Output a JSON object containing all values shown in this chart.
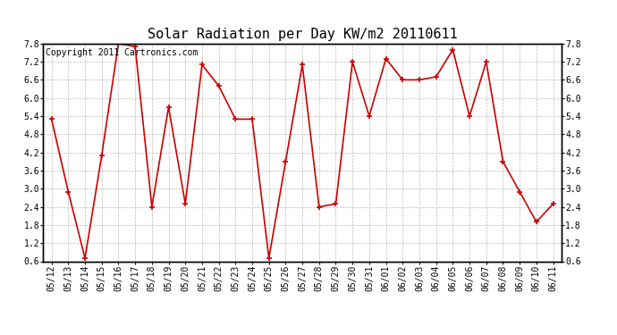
{
  "title": "Solar Radiation per Day KW/m2 20110611",
  "copyright": "Copyright 2011 Cartronics.com",
  "labels": [
    "05/12",
    "05/13",
    "05/14",
    "05/15",
    "05/16",
    "05/17",
    "05/18",
    "05/19",
    "05/20",
    "05/21",
    "05/22",
    "05/23",
    "05/24",
    "05/25",
    "05/26",
    "05/27",
    "05/28",
    "05/29",
    "05/30",
    "05/31",
    "06/01",
    "06/02",
    "06/03",
    "06/04",
    "06/05",
    "06/06",
    "06/07",
    "06/08",
    "06/09",
    "06/10",
    "06/11"
  ],
  "values": [
    5.3,
    2.9,
    0.7,
    4.1,
    7.8,
    7.7,
    2.4,
    5.7,
    2.5,
    7.1,
    6.4,
    5.3,
    5.3,
    0.7,
    3.9,
    7.1,
    2.4,
    2.5,
    7.2,
    5.4,
    7.3,
    6.6,
    6.6,
    6.7,
    7.6,
    5.4,
    7.2,
    3.9,
    2.9,
    1.9,
    2.5
  ],
  "ylim_min": 0.6,
  "ylim_max": 7.8,
  "yticks": [
    0.6,
    1.2,
    1.8,
    2.4,
    3.0,
    3.6,
    4.2,
    4.8,
    5.4,
    6.0,
    6.6,
    7.2,
    7.8
  ],
  "line_color": "#cc0000",
  "marker_color": "#cc0000",
  "bg_color": "#ffffff",
  "grid_color": "#bbbbbb",
  "title_fontsize": 11,
  "tick_fontsize": 7,
  "copyright_fontsize": 7
}
